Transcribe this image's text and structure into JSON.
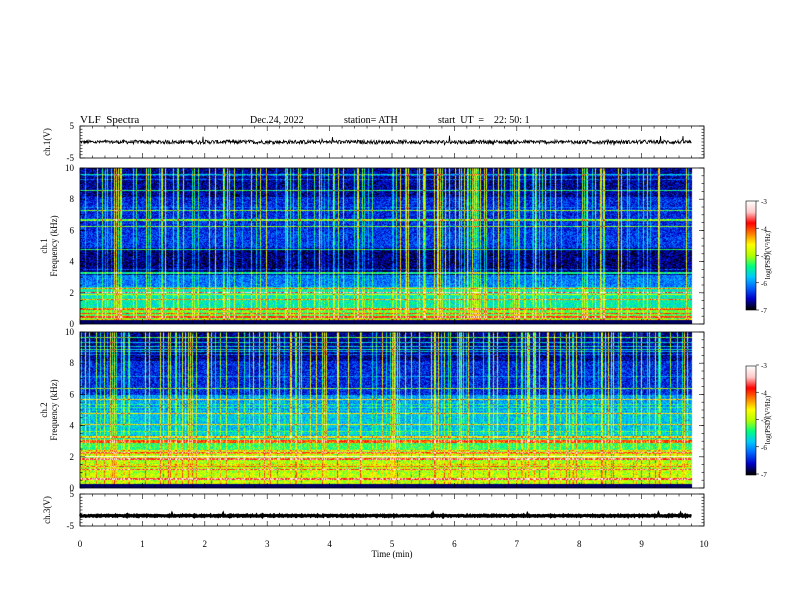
{
  "header": {
    "title": "VLF  Spectra",
    "date": "Dec.24, 2022",
    "station": "station= ATH",
    "start_ut": "start  UT  =    22: 50: 1"
  },
  "colors": {
    "spec_background": "#000066",
    "colormap": [
      "#000000",
      "#0000c8",
      "#0064ff",
      "#00c8ff",
      "#00ff80",
      "#b4ff00",
      "#ffff00",
      "#ff8000",
      "#ff0000",
      "#ffc8c8",
      "#ffffff"
    ]
  },
  "chart_data": [
    {
      "type": "line",
      "panel": "ch1_waveform",
      "ylabel": "ch.1(V)",
      "ylim": [
        -5,
        5
      ],
      "yticks": [
        "5",
        "-5"
      ],
      "xlim": [
        0,
        10
      ],
      "baseline_v": 0,
      "noise_amplitude_v": 1.2
    },
    {
      "type": "heatmap",
      "panel": "ch1_spectrogram",
      "ylabel": "ch.1\nFrequency (kHz)",
      "ylim": [
        0,
        10
      ],
      "yticks": [
        "0",
        "2",
        "4",
        "6",
        "8",
        "10"
      ],
      "xlim": [
        0,
        10
      ],
      "data_end_min": 9.8,
      "colorbar": {
        "label": "log(PSD)(V²/Hz)",
        "range": [
          -7,
          -3
        ],
        "ticks": [
          "-3",
          "-4",
          "-5",
          "-6",
          "-7"
        ]
      }
    },
    {
      "type": "heatmap",
      "panel": "ch2_spectrogram",
      "ylabel": "ch.2\nFrequency (kHz)",
      "ylim": [
        0,
        10
      ],
      "yticks": [
        "0",
        "2",
        "4",
        "6",
        "8",
        "10"
      ],
      "xlim": [
        0,
        10
      ],
      "data_end_min": 9.8,
      "colorbar": {
        "label": "log(PSD)(V²/Hz)",
        "range": [
          -7,
          -3
        ],
        "ticks": [
          "-3",
          "-4",
          "-5",
          "-6",
          "-7"
        ]
      }
    },
    {
      "type": "line",
      "panel": "ch3_waveform",
      "ylabel": "ch.3(V)",
      "ylim": [
        -5,
        5
      ],
      "yticks": [
        "5",
        "-5"
      ],
      "xlim": [
        0,
        10
      ],
      "baseline_v": -1.8,
      "noise_amplitude_v": 0.3
    }
  ],
  "xaxis": {
    "label": "Time  (min)",
    "ticks": [
      "0",
      "1",
      "2",
      "3",
      "4",
      "5",
      "6",
      "7",
      "8",
      "9",
      "10"
    ],
    "range": [
      0,
      10
    ]
  }
}
